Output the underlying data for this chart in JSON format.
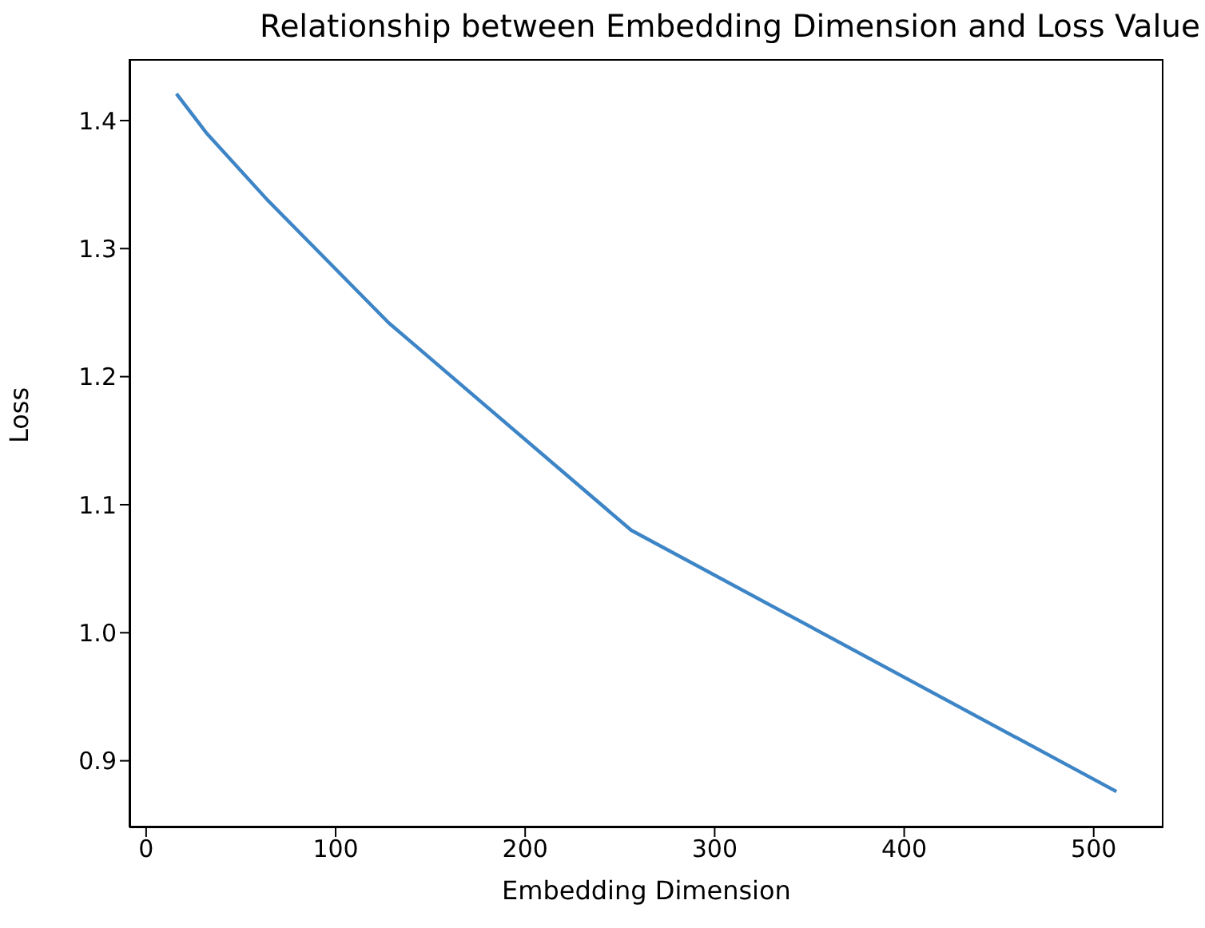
{
  "chart_data": {
    "type": "line",
    "title": "Relationship between Embedding Dimension and Loss Value",
    "xlabel": "Embedding Dimension",
    "ylabel": "Loss",
    "x": [
      16,
      32,
      64,
      128,
      256,
      512
    ],
    "series": [
      {
        "color": "#3d85c6",
        "values": [
          1.421,
          1.39,
          1.338,
          1.242,
          1.08,
          0.876
        ]
      }
    ],
    "xlim": [
      -8.8,
      536.8
    ],
    "xticks": [
      0,
      100,
      200,
      300,
      400,
      500
    ],
    "ylim": [
      0.848,
      1.448
    ],
    "yticks": [
      0.9,
      {
        "value": 1.0,
        "label": "1.0"
      },
      1.1,
      1.2,
      1.3,
      1.4
    ],
    "grid": false,
    "legend": false,
    "marker": "none",
    "line_style": "solid"
  }
}
